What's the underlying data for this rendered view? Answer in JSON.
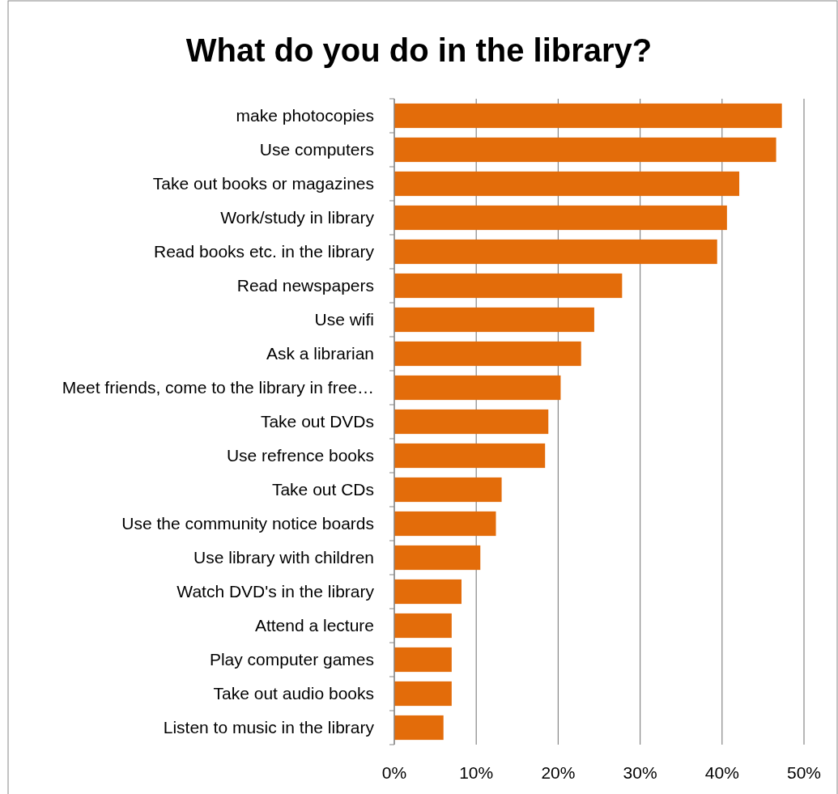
{
  "chart_data": {
    "type": "bar",
    "orientation": "horizontal",
    "title": "What do you do in the library?",
    "categories": [
      "make photocopies",
      "Use computers",
      "Take out books or magazines",
      "Work/study in library",
      "Read books etc. in the library",
      "Read newspapers",
      "Use wifi",
      "Ask a librarian",
      "Meet friends, come to the library in free…",
      "Take out DVDs",
      "Use refrence books",
      "Take out CDs",
      "Use the community notice boards",
      "Use library with children",
      "Watch DVD's in the library",
      "Attend a lecture",
      "Play computer games",
      "Take out audio books",
      "Listen to music in the library"
    ],
    "values": [
      47.3,
      46.6,
      42.1,
      40.6,
      39.4,
      27.8,
      24.4,
      22.8,
      20.3,
      18.8,
      18.4,
      13.1,
      12.4,
      10.5,
      8.2,
      7.0,
      7.0,
      7.0,
      6.0
    ],
    "color": "#e36c0a",
    "xlim": [
      0,
      50
    ],
    "xticks": [
      {
        "value": 0,
        "label": "0%"
      },
      {
        "value": 10,
        "label": "10%"
      },
      {
        "value": 20,
        "label": "20%"
      },
      {
        "value": 30,
        "label": "30%"
      },
      {
        "value": 40,
        "label": "40%"
      },
      {
        "value": 50,
        "label": "50%"
      }
    ],
    "grid": "x"
  }
}
